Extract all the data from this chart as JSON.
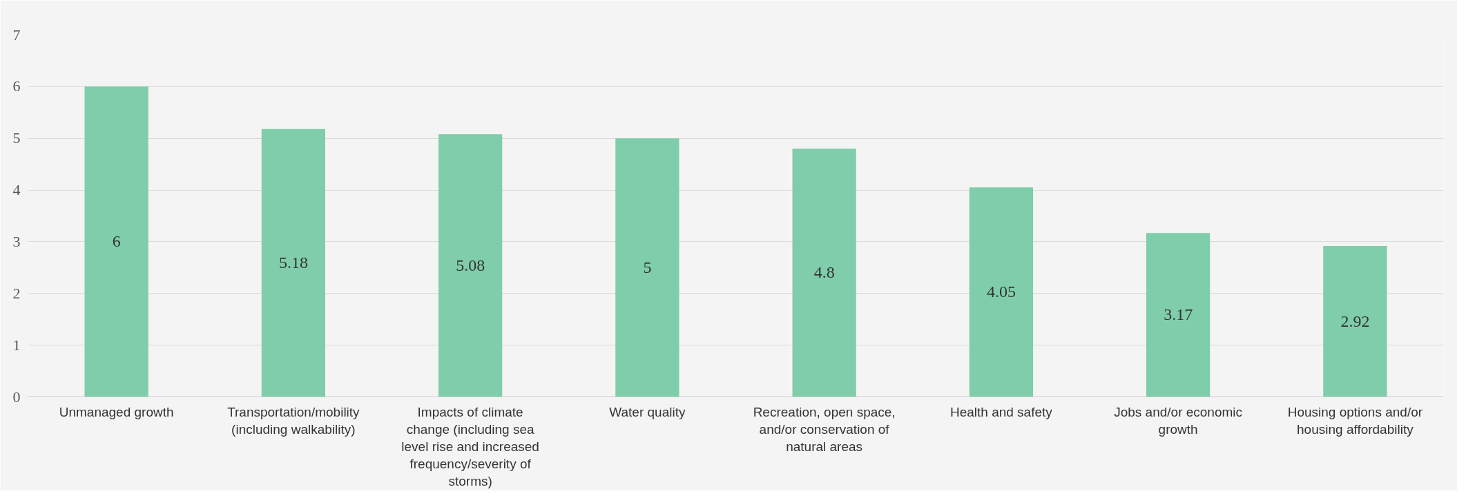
{
  "chart_data": {
    "type": "bar",
    "categories": [
      "Unmanaged growth",
      "Transportation/mobility (including walkability)",
      "Impacts of climate change (including sea level rise and increased frequency/severity of storms)",
      "Water quality",
      "Recreation, open space, and/or conservation of natural areas",
      "Health and safety",
      "Jobs and/or economic growth",
      "Housing options and/or housing affordability"
    ],
    "values": [
      6,
      5.18,
      5.08,
      5,
      4.8,
      4.05,
      3.17,
      2.92
    ],
    "color": "#7fcdab",
    "ylim": [
      0,
      7
    ],
    "yticks": [
      0,
      1,
      2,
      3,
      4,
      5,
      6,
      7
    ],
    "grid": "y",
    "data_labels": true
  }
}
